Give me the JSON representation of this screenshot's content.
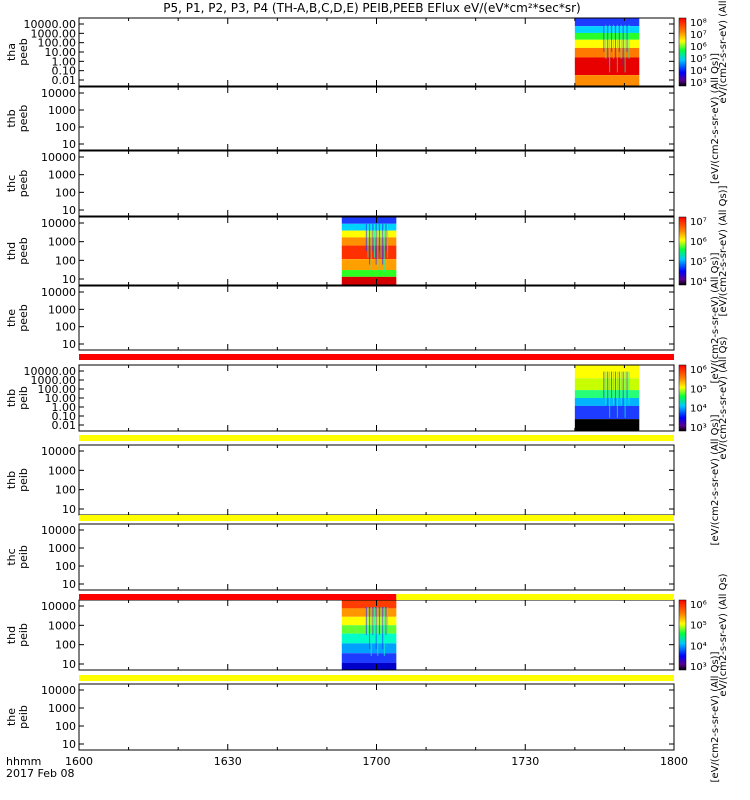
{
  "title": "P5, P1, P2, P3, P4 (TH-A,B,C,D,E) PEIB,PEEB EFlux eV/(eV*cm²*sec*sr)",
  "chart_data": {
    "type": "heatmap",
    "date_label": "2017 Feb 08",
    "time_label": "hhmm",
    "x_ticks": [
      "1600",
      "1630",
      "1700",
      "1730",
      "1800"
    ],
    "x_range": [
      "16:00",
      "18:00"
    ],
    "panels": [
      {
        "id": "tha-peeb",
        "probe": "tha",
        "instrument": "peeb",
        "ylabels": [
          "10000.00",
          "1000.00",
          "100.00",
          "10.00",
          "1.00",
          "0.10",
          "0.01"
        ],
        "has_data": true,
        "data_window": [
          "17:40",
          "17:53"
        ]
      },
      {
        "id": "thb-peeb",
        "probe": "thb",
        "instrument": "peeb",
        "ylabels": [
          "10000",
          "1000",
          "100",
          "10"
        ],
        "has_data": false
      },
      {
        "id": "thc-peeb",
        "probe": "thc",
        "instrument": "peeb",
        "ylabels": [
          "10000",
          "1000",
          "100",
          "10"
        ],
        "has_data": false
      },
      {
        "id": "thd-peeb",
        "probe": "thd",
        "instrument": "peeb",
        "ylabels": [
          "10000",
          "1000",
          "100",
          "10"
        ],
        "has_data": true,
        "data_window": [
          "16:53",
          "17:04"
        ]
      },
      {
        "id": "the-peeb",
        "probe": "the",
        "instrument": "peeb",
        "ylabels": [
          "10000",
          "1000",
          "100",
          "10"
        ],
        "has_data": false
      },
      {
        "id": "thb-peib",
        "probe": "thb",
        "instrument": "peib",
        "ylabels": [
          "10000.00",
          "1000.00",
          "100.00",
          "10.00",
          "1.00",
          "0.10",
          "0.01"
        ],
        "has_data": true,
        "data_window": [
          "17:40",
          "17:53"
        ]
      },
      {
        "id": "thb-peib-2",
        "probe": "thb",
        "instrument": "peib",
        "ylabels": [
          "10000",
          "1000",
          "100",
          "10"
        ],
        "has_data": false
      },
      {
        "id": "thc-peib",
        "probe": "thc",
        "instrument": "peib",
        "ylabels": [
          "10000",
          "1000",
          "100",
          "10"
        ],
        "has_data": false
      },
      {
        "id": "thd-peib",
        "probe": "thd",
        "instrument": "peib",
        "ylabels": [
          "10000",
          "1000",
          "100",
          "10"
        ],
        "has_data": true,
        "data_window": [
          "16:53",
          "17:04"
        ]
      },
      {
        "id": "the-peib",
        "probe": "the",
        "instrument": "peib",
        "ylabels": [
          "10000",
          "1000",
          "100",
          "10"
        ],
        "has_data": false
      }
    ],
    "status_bars": [
      {
        "id": "bar-1",
        "color": "#ff0000"
      },
      {
        "id": "bar-2",
        "color": "#ffff00"
      },
      {
        "id": "bar-3",
        "color": "#ffff00"
      },
      {
        "id": "bar-4",
        "segments": [
          {
            "color": "#ff0000",
            "to": "17:04"
          },
          {
            "color": "#ffff00",
            "from": "17:04"
          }
        ]
      },
      {
        "id": "bar-5",
        "color": "#ffff00"
      }
    ],
    "colorbars": [
      {
        "id": "cb-tha",
        "label": "eV/(cm2-s-sr-eV) (All",
        "ticks": [
          "10⁸",
          "10⁷",
          "10⁶",
          "10⁵",
          "10⁴",
          "10³"
        ]
      },
      {
        "id": "cb-thb-peeb",
        "label": "[eV/(cm2-s-sr-eV) (All Qs)]",
        "ticks": []
      },
      {
        "id": "cb-thd-peeb",
        "label": "[eV/(cm2-s-sr-eV) (All Qs)]",
        "ticks": [
          "10⁷",
          "10⁶",
          "10⁵",
          "10⁴"
        ]
      },
      {
        "id": "cb-the-peeb",
        "label": "[eV/(cm2-s-sr-eV) (All Qs)]",
        "ticks": []
      },
      {
        "id": "cb-thb-peib",
        "label": "eV/(cm2-s-sr-eV) (All Qs)",
        "ticks": [
          "10⁶",
          "10⁵",
          "10⁴",
          "10³"
        ]
      },
      {
        "id": "cb-thb-peib-2",
        "label": "[eV/(cm2-s-sr-eV) (All Qs)]",
        "ticks": []
      },
      {
        "id": "cb-thd-peib",
        "label": "eV/(cm2-s-sr-eV) (All Qs)",
        "ticks": [
          "10⁶",
          "10⁵",
          "10⁴",
          "10³"
        ]
      },
      {
        "id": "cb-the-peib",
        "label": "[eV/(cm2-s-sr-eV) (All Qs)]",
        "ticks": []
      }
    ]
  }
}
